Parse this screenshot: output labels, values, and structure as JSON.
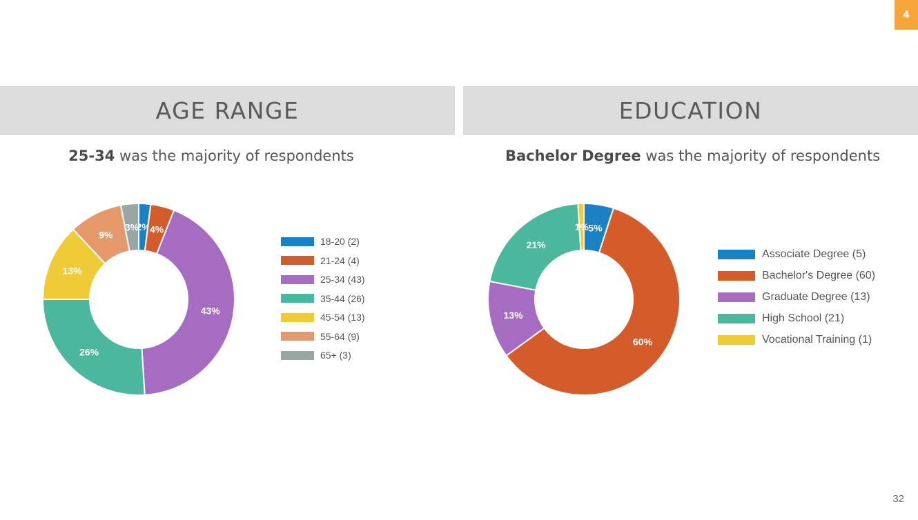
{
  "badge": "4",
  "page_number": "32",
  "sections": {
    "left": {
      "heading": "AGE RANGE",
      "subtitle_bold": "25-34",
      "subtitle_rest": " was the majority of respondents"
    },
    "right": {
      "heading": "EDUCATION",
      "subtitle_bold": "Bachelor Degree",
      "subtitle_rest": " was the majority of respondents"
    }
  },
  "chart_data": [
    {
      "type": "pie",
      "donut": true,
      "title": "",
      "legend_position": "right",
      "slices": [
        {
          "label": "18-20 (2)",
          "value": 2,
          "pct_label": "2%",
          "color": "#1a81c5"
        },
        {
          "label": "21-24 (4)",
          "value": 4,
          "pct_label": "4%",
          "color": "#d45c2b"
        },
        {
          "label": "25-34 (43)",
          "value": 43,
          "pct_label": "43%",
          "color": "#a66cc2"
        },
        {
          "label": "35-44 (26)",
          "value": 26,
          "pct_label": "26%",
          "color": "#4bb79d"
        },
        {
          "label": "45-54 (13)",
          "value": 13,
          "pct_label": "13%",
          "color": "#f0cb38"
        },
        {
          "label": "55-64 (9)",
          "value": 9,
          "pct_label": "9%",
          "color": "#e5996b"
        },
        {
          "label": "65+ (3)",
          "value": 3,
          "pct_label": "3%",
          "color": "#98a7a3"
        }
      ]
    },
    {
      "type": "pie",
      "donut": true,
      "title": "",
      "legend_position": "right",
      "slices": [
        {
          "label": "Associate Degree (5)",
          "value": 5,
          "pct_label": "5%",
          "color": "#1a81c5"
        },
        {
          "label": "Bachelor's Degree (60)",
          "value": 60,
          "pct_label": "60%",
          "color": "#d45c2b"
        },
        {
          "label": "Graduate Degree (13)",
          "value": 13,
          "pct_label": "13%",
          "color": "#a66cc2"
        },
        {
          "label": "High School (21)",
          "value": 21,
          "pct_label": "21%",
          "color": "#4bb79d"
        },
        {
          "label": "Vocational Training (1)",
          "value": 1,
          "pct_label": "1%",
          "color": "#f0cb38"
        }
      ]
    }
  ]
}
